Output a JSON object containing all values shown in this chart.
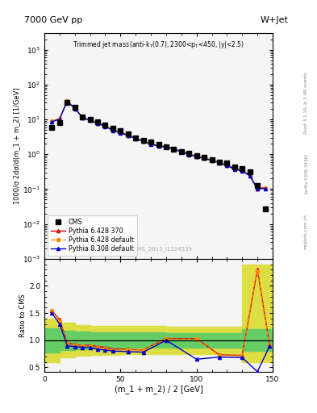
{
  "title_top": "7000 GeV pp",
  "title_right": "W+Jet",
  "ylabel_main": "1000/σ 2dσ/d(m_1 + m_2) [1/GeV]",
  "ylabel_ratio": "Ratio to CMS",
  "xlabel": "(m_1 + m_2) / 2 [GeV]",
  "cms_label": "CMS_2013_I1224539",
  "rivet_label": "Rivet 3.1.10, ≥ 3.4M events",
  "arxiv_label": "[arXiv:1306.3436]",
  "mcplots_label": "mcplots.cern.ch",
  "x_data": [
    5,
    10,
    15,
    20,
    25,
    30,
    35,
    40,
    45,
    50,
    55,
    60,
    65,
    70,
    75,
    80,
    85,
    90,
    95,
    100,
    105,
    110,
    115,
    120,
    125,
    130,
    135,
    140,
    145
  ],
  "cms_y": [
    6.0,
    8.0,
    30.0,
    22.0,
    12.0,
    10.0,
    8.5,
    7.0,
    5.5,
    4.8,
    3.8,
    3.0,
    2.5,
    2.2,
    1.9,
    1.6,
    1.4,
    1.2,
    1.05,
    0.9,
    0.8,
    0.7,
    0.6,
    0.55,
    0.42,
    0.38,
    0.32,
    0.13,
    0.027
  ],
  "py6_370_y": [
    8.8,
    10.5,
    34.0,
    21.0,
    11.5,
    9.5,
    7.8,
    6.5,
    5.0,
    4.3,
    3.5,
    2.9,
    2.4,
    2.0,
    1.75,
    1.65,
    1.45,
    1.2,
    1.02,
    0.88,
    0.78,
    0.68,
    0.59,
    0.49,
    0.39,
    0.35,
    0.25,
    0.105,
    0.11
  ],
  "py6_def_y": [
    8.8,
    10.5,
    33.5,
    20.8,
    11.4,
    9.4,
    7.7,
    6.4,
    4.9,
    4.2,
    3.4,
    2.85,
    2.38,
    1.98,
    1.73,
    1.63,
    1.43,
    1.18,
    1.0,
    0.86,
    0.77,
    0.67,
    0.58,
    0.48,
    0.38,
    0.34,
    0.245,
    0.103,
    0.108
  ],
  "py8_def_y": [
    8.5,
    10.2,
    33.0,
    20.5,
    11.3,
    9.3,
    7.6,
    6.3,
    4.85,
    4.15,
    3.4,
    2.82,
    2.35,
    1.96,
    1.71,
    1.61,
    1.41,
    1.16,
    0.98,
    0.85,
    0.76,
    0.66,
    0.57,
    0.47,
    0.37,
    0.33,
    0.24,
    0.1,
    0.105
  ],
  "ratio_x": [
    5,
    10,
    15,
    20,
    25,
    30,
    35,
    40,
    45,
    55,
    65,
    80,
    100,
    115,
    130,
    140,
    148
  ],
  "ratio_py6_370": [
    1.55,
    1.38,
    0.95,
    0.92,
    0.9,
    0.91,
    0.88,
    0.87,
    0.84,
    0.83,
    0.82,
    1.03,
    1.03,
    0.73,
    0.72,
    2.3,
    0.92
  ],
  "ratio_py6_def": [
    1.55,
    1.36,
    0.93,
    0.91,
    0.89,
    0.9,
    0.86,
    0.85,
    0.82,
    0.82,
    0.82,
    1.02,
    1.02,
    0.72,
    0.71,
    2.28,
    0.91
  ],
  "ratio_py8_def": [
    1.5,
    1.3,
    0.9,
    0.88,
    0.87,
    0.87,
    0.83,
    0.82,
    0.8,
    0.79,
    0.78,
    1.0,
    0.65,
    0.69,
    0.68,
    0.42,
    0.89
  ],
  "band_x_edges": [
    0,
    10,
    20,
    30,
    50,
    80,
    130,
    145,
    155
  ],
  "band_yellow_lo": [
    0.6,
    0.68,
    0.72,
    0.73,
    0.74,
    0.75,
    0.6,
    0.6,
    0.6
  ],
  "band_yellow_hi": [
    1.4,
    1.32,
    1.28,
    1.27,
    1.26,
    1.25,
    2.4,
    2.4,
    2.4
  ],
  "band_green_lo": [
    0.78,
    0.82,
    0.84,
    0.85,
    0.86,
    0.87,
    0.8,
    0.8,
    0.8
  ],
  "band_green_hi": [
    1.22,
    1.18,
    1.16,
    1.15,
    1.14,
    1.13,
    1.2,
    1.2,
    1.2
  ],
  "color_py6_370": "#cc0000",
  "color_py6_def": "#ff8800",
  "color_py8_def": "#0000cc",
  "color_cms": "black",
  "color_green": "#66cc66",
  "color_yellow": "#dddd44",
  "xlim": [
    0,
    150
  ],
  "ylim_main": [
    0.001,
    3000
  ],
  "ylim_ratio": [
    0.42,
    2.5
  ],
  "ratio_yticks": [
    0.5,
    1.0,
    1.5,
    2.0
  ],
  "bg_color": "#f5f5f5"
}
